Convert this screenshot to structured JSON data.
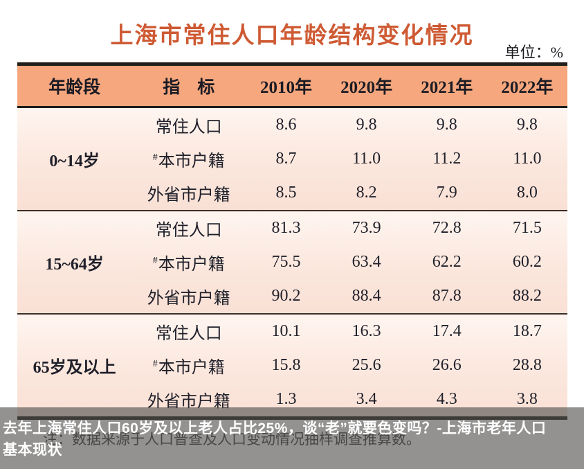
{
  "chart_data": {
    "type": "table",
    "title": "上海市常住人口年龄结构变化情况",
    "unit": "单位：%",
    "columns": [
      "年龄段",
      "指　标",
      "2010年",
      "2020年",
      "2021年",
      "2022年"
    ],
    "groups": [
      {
        "age": "0~14岁",
        "rows": [
          {
            "prefix": "",
            "indicator": "常住人口",
            "values": [
              "8.6",
              "9.8",
              "9.8",
              "9.8"
            ]
          },
          {
            "prefix": "#",
            "indicator": "本市户籍",
            "values": [
              "8.7",
              "11.0",
              "11.2",
              "11.0"
            ]
          },
          {
            "prefix": "",
            "indicator": "外省市户籍",
            "values": [
              "8.5",
              "8.2",
              "7.9",
              "8.0"
            ]
          }
        ]
      },
      {
        "age": "15~64岁",
        "rows": [
          {
            "prefix": "",
            "indicator": "常住人口",
            "values": [
              "81.3",
              "73.9",
              "72.8",
              "71.5"
            ]
          },
          {
            "prefix": "#",
            "indicator": "本市户籍",
            "values": [
              "75.5",
              "63.4",
              "62.2",
              "60.2"
            ]
          },
          {
            "prefix": "",
            "indicator": "外省市户籍",
            "values": [
              "90.2",
              "88.4",
              "87.8",
              "88.2"
            ]
          }
        ]
      },
      {
        "age": "65岁及以上",
        "rows": [
          {
            "prefix": "",
            "indicator": "常住人口",
            "values": [
              "10.1",
              "16.3",
              "17.4",
              "18.7"
            ]
          },
          {
            "prefix": "#",
            "indicator": "本市户籍",
            "values": [
              "15.8",
              "25.6",
              "26.6",
              "28.8"
            ]
          },
          {
            "prefix": "",
            "indicator": "外省市户籍",
            "values": [
              "1.3",
              "3.4",
              "4.3",
              "3.8"
            ]
          }
        ]
      }
    ]
  },
  "note": "注：数据来源于人口普查及人口变动情况抽样调查推算数。",
  "caption": {
    "line1": "去年上海常住人口60岁及以上老人占比25%，谈“老”就要色变吗？-上海市老年人口",
    "line2": "基本现状"
  },
  "colors": {
    "title": "#ce5a33",
    "header_bg": "#f6a77d",
    "body_bg_top": "#fef5f0",
    "body_bg_bottom": "#f9e0d5",
    "table_line": "#211d1a",
    "overlay": "rgba(80,79,78,0.62)",
    "caption_text": "#ffffff"
  }
}
